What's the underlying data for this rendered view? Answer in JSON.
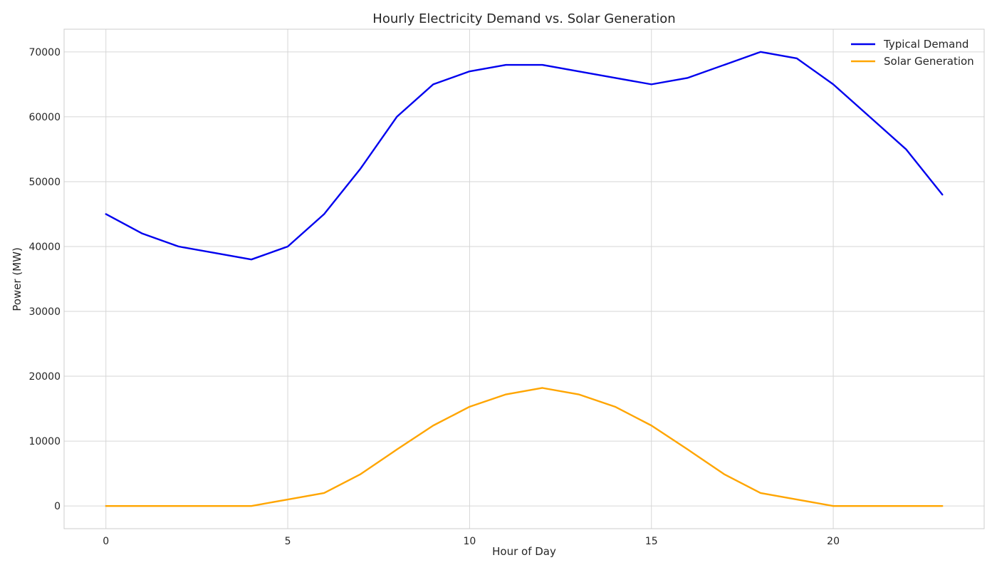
{
  "chart_data": {
    "type": "line",
    "title": "Hourly Electricity Demand vs. Solar Generation",
    "xlabel": "Hour of Day",
    "ylabel": "Power (MW)",
    "x": [
      0,
      1,
      2,
      3,
      4,
      5,
      6,
      7,
      8,
      9,
      10,
      11,
      12,
      13,
      14,
      15,
      16,
      17,
      18,
      19,
      20,
      21,
      22,
      23
    ],
    "xlim": [
      -1.15,
      24.15
    ],
    "ylim": [
      -3500,
      73500
    ],
    "xticks": [
      0,
      5,
      10,
      15,
      20
    ],
    "yticks": [
      0,
      10000,
      20000,
      30000,
      40000,
      50000,
      60000,
      70000
    ],
    "grid": true,
    "legend_position": "top-right",
    "series": [
      {
        "name": "Typical Demand",
        "color": "#0000ee",
        "values": [
          45000,
          42000,
          40000,
          39000,
          38000,
          40000,
          45000,
          52000,
          60000,
          65000,
          67000,
          68000,
          68000,
          67000,
          66000,
          65000,
          66000,
          68000,
          70000,
          69000,
          65000,
          60000,
          55000,
          48000
        ]
      },
      {
        "name": "Solar Generation",
        "color": "#ffa500",
        "values": [
          0,
          0,
          0,
          0,
          0,
          1000,
          2000,
          4900,
          8700,
          12400,
          15300,
          17200,
          18200,
          17200,
          15300,
          12400,
          8700,
          4900,
          2000,
          1000,
          0,
          0,
          0,
          0
        ]
      }
    ]
  }
}
